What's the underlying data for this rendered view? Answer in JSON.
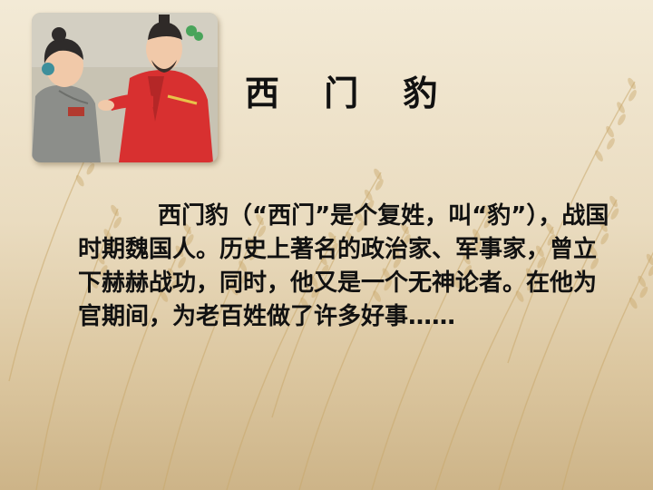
{
  "slide": {
    "title": "西 门 豹",
    "paragraph": "西门豹（“西门”是个复姓，叫“豹”），战国时期魏国人。历史上著名的政治家、军事家，曾立下赫赫战功，同时，他又是一个无神论者。在他为官期间，为老百姓做了许多好事……"
  },
  "illustration": {
    "figures": [
      "official-in-red-robe",
      "servant-in-grey-robe"
    ]
  },
  "colors": {
    "background": "#ecdfc4",
    "wheat_stalk": "#c9a86c",
    "robe_red": "#d8312f",
    "robe_grey": "#8d8f8a",
    "text": "#111111"
  }
}
